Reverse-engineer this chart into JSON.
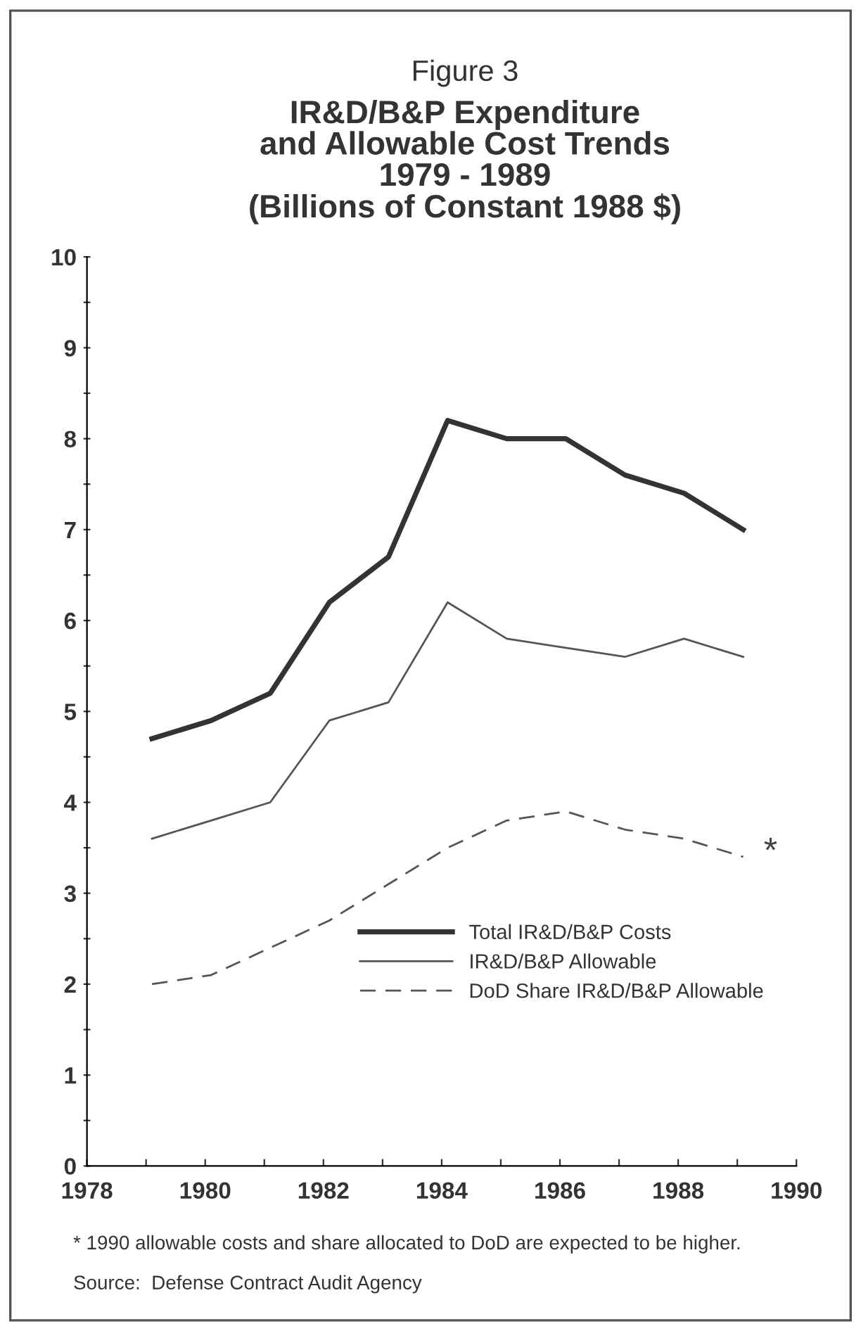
{
  "chart_data": {
    "type": "line",
    "title": "Figure 3",
    "subtitle": "IR&D/B&P Expenditure\nand Allowable Cost Trends\n1979 - 1989\n(Billions of Constant 1988 $)",
    "x": [
      1979.1,
      1980.1,
      1981.1,
      1982.1,
      1983.1,
      1984.1,
      1985.1,
      1986.1,
      1987.1,
      1988.1,
      1989.1
    ],
    "series": [
      {
        "name": "Total IR&D/B&P Costs",
        "color": "#333333",
        "line_style": "solid",
        "values": [
          4.7,
          4.9,
          5.2,
          6.2,
          6.7,
          8.2,
          8.0,
          8.0,
          7.6,
          7.4,
          7.0
        ]
      },
      {
        "name": "IR&D/B&P Allowable",
        "color": "#555555",
        "line_style": "solid",
        "values": [
          3.6,
          3.8,
          4.0,
          4.9,
          5.1,
          6.2,
          5.8,
          5.7,
          5.6,
          5.8,
          5.6
        ]
      },
      {
        "name": "DoD Share IR&D/B&P Allowable",
        "color": "#555555",
        "line_style": "dashed",
        "values": [
          2.0,
          2.1,
          2.4,
          2.7,
          3.1,
          3.5,
          3.8,
          3.9,
          3.7,
          3.6,
          3.4
        ]
      }
    ],
    "xlim": [
      1978,
      1990
    ],
    "xticks": [
      1978,
      {
        "value": 1979,
        "label": null
      },
      1980,
      {
        "value": 1981,
        "label": null
      },
      1982,
      {
        "value": 1983,
        "label": null
      },
      1984,
      {
        "value": 1985,
        "label": null
      },
      1986,
      {
        "value": 1987,
        "label": null
      },
      1988,
      {
        "value": 1989,
        "label": null
      },
      1990
    ],
    "ylim": [
      0,
      10
    ],
    "yticks": [
      0,
      {
        "value": 0.5,
        "label": null
      },
      1,
      {
        "value": 1.5,
        "label": null
      },
      2,
      {
        "value": 2.5,
        "label": null
      },
      3,
      {
        "value": 3.5,
        "label": null
      },
      4,
      {
        "value": 4.5,
        "label": null
      },
      5,
      {
        "value": 5.5,
        "label": null
      },
      6,
      {
        "value": 6.5,
        "label": null
      },
      7,
      {
        "value": 7.5,
        "label": null
      },
      8,
      {
        "value": 8.5,
        "label": null
      },
      9,
      {
        "value": 9.5,
        "label": null
      },
      10
    ],
    "grid": false,
    "legend": "bottom right",
    "marker": "none",
    "annotations": [
      {
        "text": "*",
        "x": 1989.1,
        "y": 3.4
      },
      "* 1990 allowable costs and share allocated to DoD are expected to be higher.",
      "Source:  Defense Contract Audit Agency"
    ]
  }
}
